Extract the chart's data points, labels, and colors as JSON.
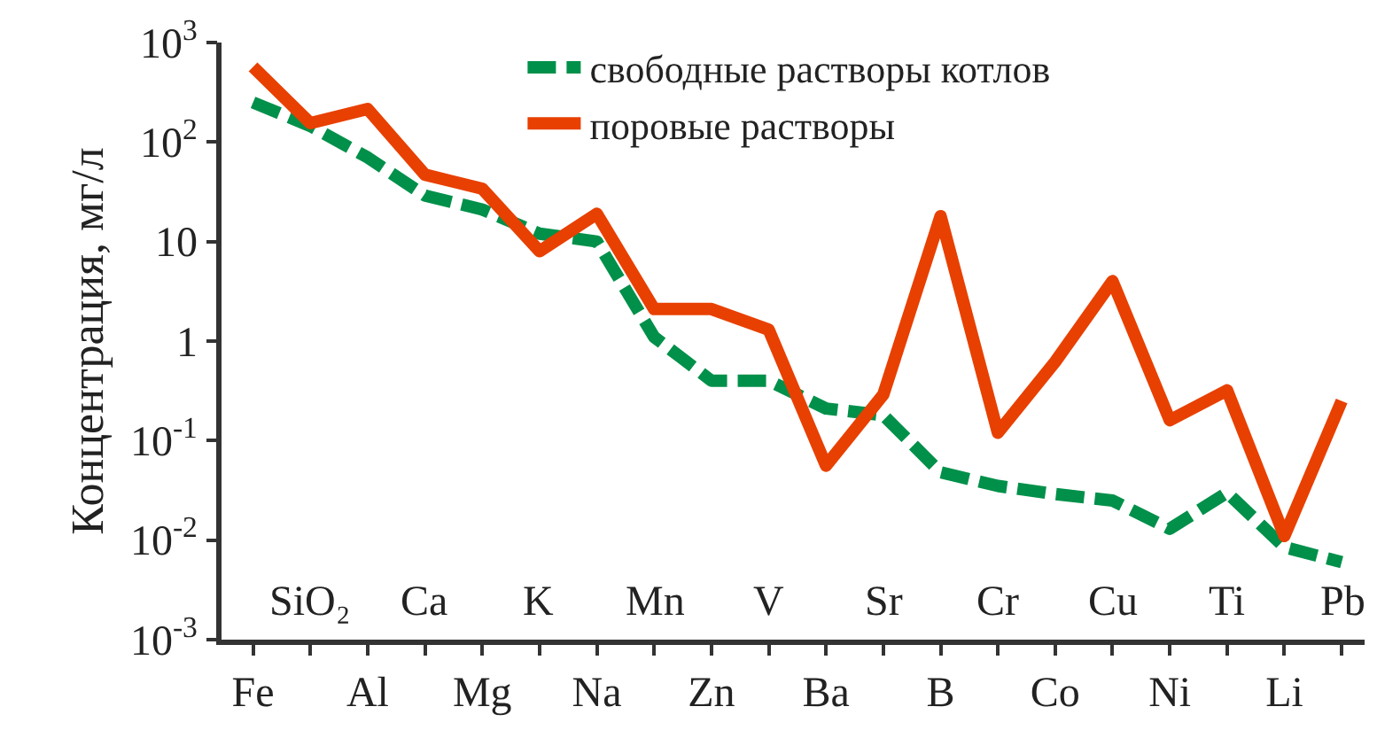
{
  "chart_data": {
    "type": "line",
    "ylabel": "Концентрация, мг/л",
    "categories": [
      "Fe",
      "SiO₂",
      "Al",
      "Ca",
      "Mg",
      "K",
      "Na",
      "Mn",
      "Zn",
      "V",
      "Ba",
      "Sr",
      "B",
      "Cr",
      "Co",
      "Cu",
      "Ni",
      "Ti",
      "Li",
      "Pb"
    ],
    "series": [
      {
        "name": "свободные растворы котлов",
        "color": "#00904a",
        "line_style": "dashed",
        "values": [
          250,
          145,
          70,
          29,
          21,
          12,
          10,
          1.1,
          0.4,
          0.4,
          0.21,
          0.18,
          0.048,
          0.035,
          0.029,
          0.025,
          0.013,
          0.03,
          0.0085,
          0.006
        ]
      },
      {
        "name": "поровые растворы",
        "color": "#e84000",
        "line_style": "solid",
        "values": [
          570,
          155,
          215,
          47,
          34,
          8,
          19,
          2.1,
          2.1,
          1.3,
          0.056,
          0.29,
          18,
          0.12,
          0.62,
          4,
          0.16,
          0.32,
          0.011,
          0.25
        ]
      }
    ],
    "log": "y",
    "ylim": [
      0.001,
      1000
    ],
    "yticks": [
      {
        "value": 1000,
        "label": "10$^{3}$"
      },
      {
        "value": 100,
        "label": "10$^{2}$"
      },
      10,
      1,
      {
        "value": 0.1,
        "label": "10$^{-1}$"
      },
      {
        "value": 0.01,
        "label": "10$^{-2}$"
      },
      {
        "value": 0.001,
        "label": "10$^{-3}$"
      }
    ],
    "legend": "top right",
    "marker": "none"
  }
}
